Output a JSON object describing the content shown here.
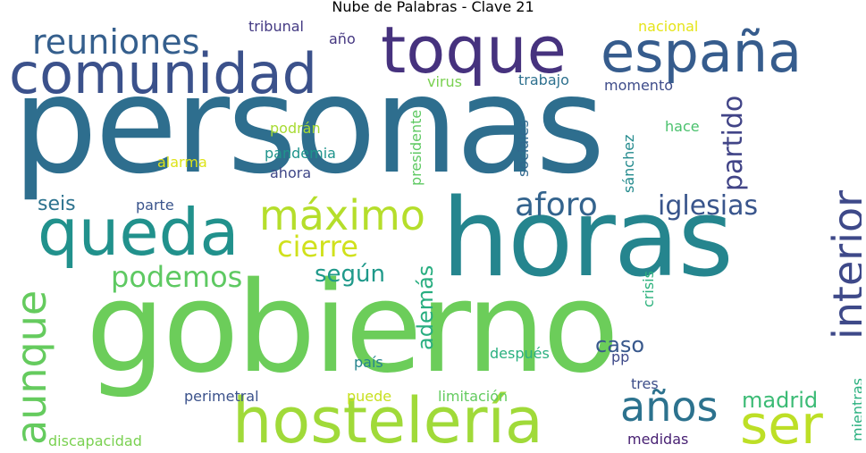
{
  "title": "Nube de Palabras - Clave 21",
  "words": [
    {
      "text": "personas",
      "color": "#2e6e8e"
    },
    {
      "text": "gobierno",
      "color": "#6ccd5a"
    },
    {
      "text": "horas",
      "color": "#25858e"
    },
    {
      "text": "toque",
      "color": "#46327e"
    },
    {
      "text": "comunidad",
      "color": "#3b518b"
    },
    {
      "text": "españa",
      "color": "#365c8d"
    },
    {
      "text": "hostelería",
      "color": "#a0da39"
    },
    {
      "text": "queda",
      "color": "#21918c"
    },
    {
      "text": "máximo",
      "color": "#b5de2b"
    },
    {
      "text": "interior",
      "color": "#3e4989"
    },
    {
      "text": "reuniones",
      "color": "#355f8d"
    },
    {
      "text": "aunque",
      "color": "#65cb5e"
    },
    {
      "text": "años",
      "color": "#2c728e"
    },
    {
      "text": "ser",
      "color": "#bddf26"
    },
    {
      "text": "aforo",
      "color": "#33638d"
    },
    {
      "text": "iglesias",
      "color": "#39558c"
    },
    {
      "text": "cierre",
      "color": "#d0e11c"
    },
    {
      "text": "podemos",
      "color": "#5ec962"
    },
    {
      "text": "partido",
      "color": "#414487"
    },
    {
      "text": "según",
      "color": "#1f998a"
    },
    {
      "text": "además",
      "color": "#28ae80"
    },
    {
      "text": "caso",
      "color": "#38588c"
    },
    {
      "text": "madrid",
      "color": "#3bbb75"
    },
    {
      "text": "seis",
      "color": "#2c728e"
    },
    {
      "text": "parte",
      "color": "#3a548c"
    },
    {
      "text": "alarma",
      "color": "#dde318"
    },
    {
      "text": "pandemia",
      "color": "#1f948c"
    },
    {
      "text": "ahora",
      "color": "#3f4788"
    },
    {
      "text": "podrán",
      "color": "#a8db34"
    },
    {
      "text": "presidente",
      "color": "#5ec962"
    },
    {
      "text": "virus",
      "color": "#7ad151"
    },
    {
      "text": "trabajo",
      "color": "#2d708e"
    },
    {
      "text": "momento",
      "color": "#3e4c8a"
    },
    {
      "text": "sociales",
      "color": "#31688e"
    },
    {
      "text": "sánchez",
      "color": "#238a8d"
    },
    {
      "text": "hace",
      "color": "#4ac16d"
    },
    {
      "text": "tribunal",
      "color": "#443a83"
    },
    {
      "text": "año",
      "color": "#453781"
    },
    {
      "text": "nacional",
      "color": "#e5e419"
    },
    {
      "text": "crisis",
      "color": "#2db27d"
    },
    {
      "text": "país",
      "color": "#25848e"
    },
    {
      "text": "después",
      "color": "#2ab07f"
    },
    {
      "text": "pp",
      "color": "#3e4989"
    },
    {
      "text": "tres",
      "color": "#3d4e8a"
    },
    {
      "text": "perimetral",
      "color": "#3b528b"
    },
    {
      "text": "puede",
      "color": "#c8e020"
    },
    {
      "text": "limitación",
      "color": "#63cb5f"
    },
    {
      "text": "discapacidad",
      "color": "#7ad151"
    },
    {
      "text": "medidas",
      "color": "#482173"
    },
    {
      "text": "mientras",
      "color": "#2ab07f"
    }
  ]
}
